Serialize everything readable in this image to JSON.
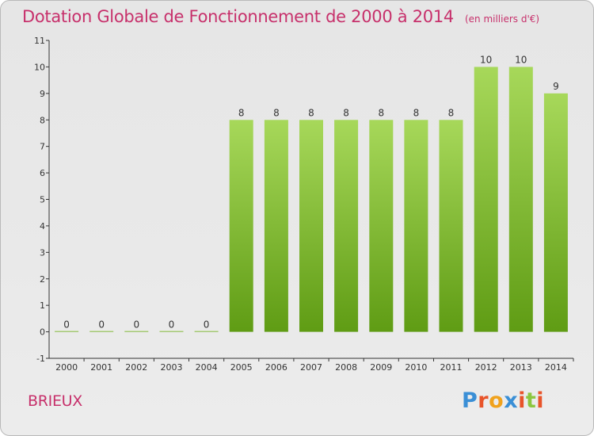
{
  "title": "Dotation Globale de Fonctionnement de 2000 à 2014",
  "unit_note": "(en milliers d'€)",
  "commune": "BRIEUX",
  "logo": {
    "text": "Proxiti",
    "letter_colors": [
      "#3a8fd6",
      "#e8542a",
      "#f0a21d",
      "#3a8fd6",
      "#e8542a",
      "#8cc63f",
      "#e8542a"
    ]
  },
  "colors": {
    "accent": "#c7306b",
    "bar_top": "#a7d85a",
    "bar_bottom": "#5f9c14"
  },
  "chart_data": {
    "type": "bar",
    "title": "Dotation Globale de Fonctionnement de 2000 à 2014",
    "categories": [
      "2000",
      "2001",
      "2002",
      "2003",
      "2004",
      "2005",
      "2006",
      "2007",
      "2008",
      "2009",
      "2010",
      "2011",
      "2012",
      "2013",
      "2014"
    ],
    "values": [
      0,
      0,
      0,
      0,
      0,
      8,
      8,
      8,
      8,
      8,
      8,
      8,
      10,
      10,
      9
    ],
    "value_labels": [
      "0",
      "0",
      "0",
      "0",
      "0",
      "8",
      "8",
      "8",
      "8",
      "8",
      "8",
      "8",
      "10",
      "10",
      "9"
    ],
    "y_ticks": [
      "-1",
      "0",
      "1",
      "2",
      "3",
      "4",
      "5",
      "6",
      "7",
      "8",
      "9",
      "10",
      "11"
    ],
    "ylim": [
      -1,
      11
    ],
    "grid": false,
    "xlabel": "",
    "ylabel": ""
  }
}
